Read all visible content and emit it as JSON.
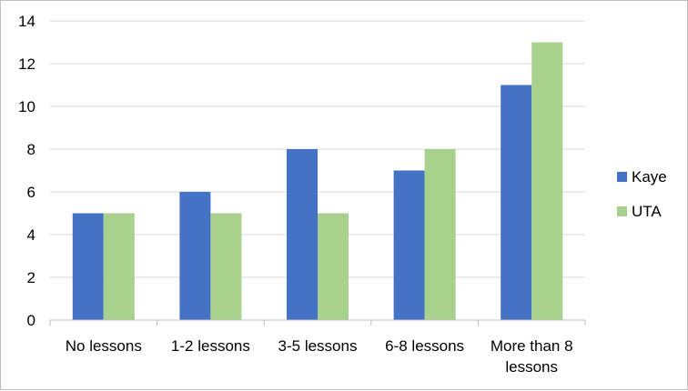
{
  "chart_data": {
    "type": "bar",
    "categories": [
      [
        "No lessons"
      ],
      [
        "1-2 lessons"
      ],
      [
        "3-5 lessons"
      ],
      [
        "6-8 lessons"
      ],
      [
        "More than 8",
        "lessons"
      ]
    ],
    "series": [
      {
        "name": "Kaye",
        "color": "#4472c4",
        "values": [
          5,
          6,
          8,
          7,
          11
        ]
      },
      {
        "name": "UTA",
        "color": "#a9d18e",
        "values": [
          5,
          5,
          5,
          8,
          13
        ]
      }
    ],
    "ylim": [
      0,
      14
    ],
    "yticks": [
      0,
      2,
      4,
      6,
      8,
      10,
      12,
      14
    ],
    "grid": true,
    "legend": "right",
    "title": "",
    "xlabel": "",
    "ylabel": ""
  }
}
